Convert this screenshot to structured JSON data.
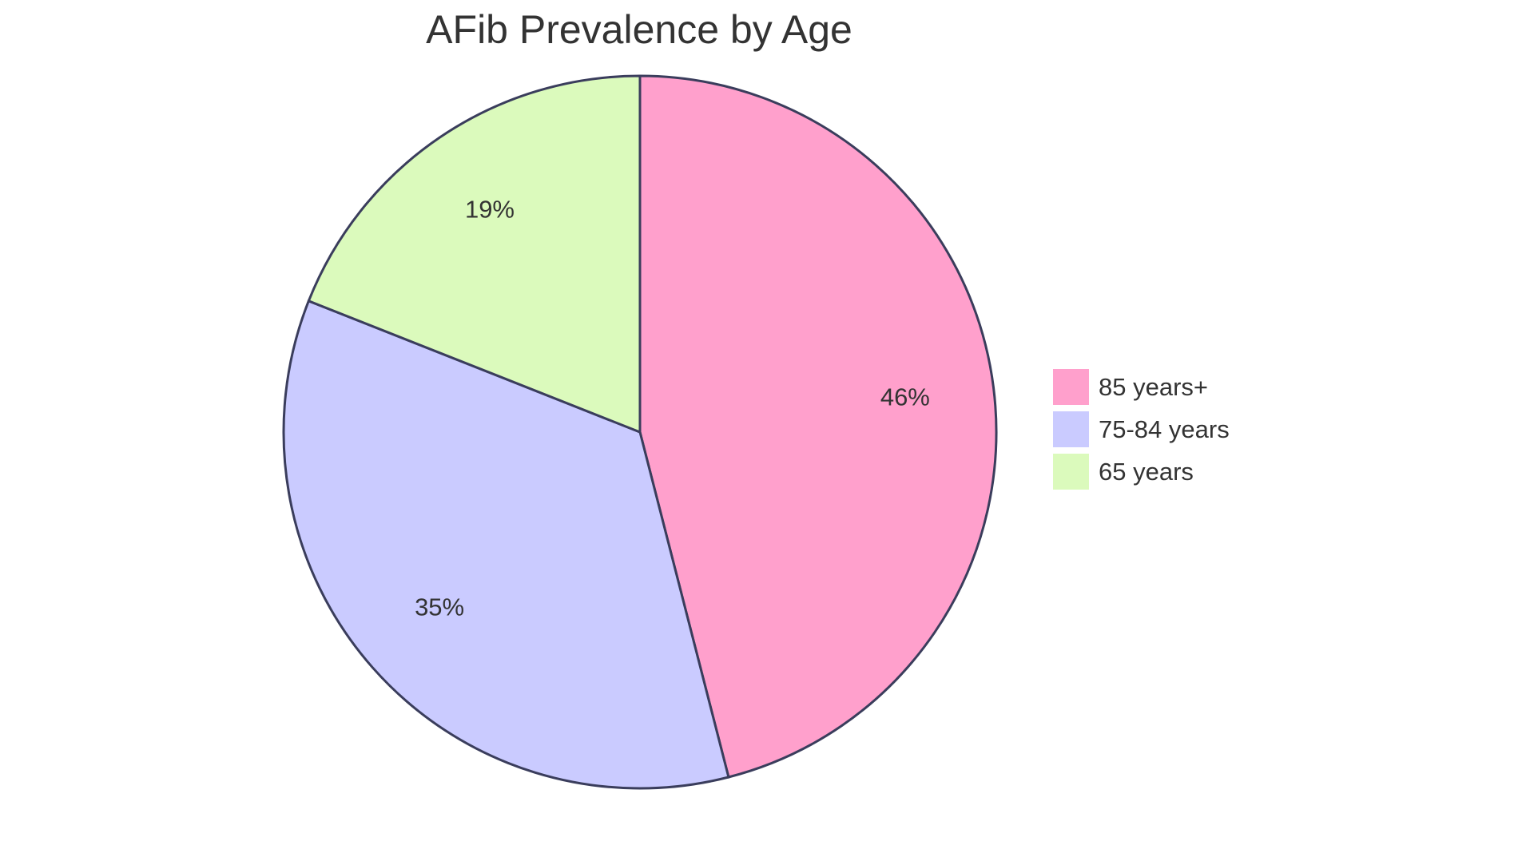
{
  "chart_data": {
    "type": "pie",
    "title": "AFib Prevalence by Age",
    "categories": [
      "85 years+",
      "75-84 years",
      "65 years"
    ],
    "values": [
      46,
      35,
      19
    ],
    "labels": [
      "46%",
      "35%",
      "19%"
    ],
    "colors": [
      "#FFA0CC",
      "#CACBFF",
      "#DBFABC"
    ],
    "stroke_color": "#3A3D5C",
    "legend_position": "right",
    "start_angle": "12 o'clock, clockwise"
  },
  "title": "AFib Prevalence by Age",
  "legend": {
    "items": [
      {
        "label": "85 years+",
        "color": "#FFA0CC"
      },
      {
        "label": "75-84 years",
        "color": "#CACBFF"
      },
      {
        "label": "65 years",
        "color": "#DBFABC"
      }
    ]
  },
  "slice_labels": [
    "46%",
    "35%",
    "19%"
  ]
}
